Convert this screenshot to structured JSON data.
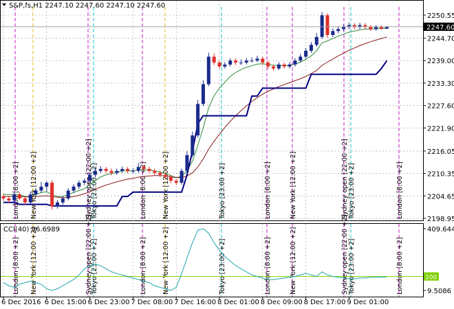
{
  "chart_data": [
    {
      "type": "candlestick",
      "title": "S&P,fs,H1  2247.10 2247.60 2247.10 2247.60",
      "categories": [
        "6 Dec 2016",
        null,
        null,
        null,
        null,
        null,
        null,
        null,
        "6 Dec 15:00",
        null,
        null,
        null,
        null,
        null,
        null,
        null,
        "6 Dec 23:00",
        null,
        null,
        null,
        null,
        null,
        null,
        null,
        "7 Dec 08:00",
        null,
        null,
        null,
        null,
        null,
        null,
        null,
        "7 Dec 16:00",
        null,
        null,
        null,
        null,
        null,
        null,
        null,
        "8 Dec 01:00",
        null,
        null,
        null,
        null,
        null,
        null,
        null,
        "8 Dec 09:00",
        null,
        null,
        null,
        null,
        null,
        null,
        null,
        "8 Dec 17:00",
        null,
        null,
        null,
        null,
        null,
        null,
        null,
        "9 Dec 01:00",
        null,
        null,
        null,
        null,
        null,
        null,
        null
      ],
      "ohlc": [
        [
          2204.5,
          2205.3,
          2203.4,
          2204
        ],
        [
          2204,
          2204.6,
          2202.8,
          2203.5
        ],
        [
          2203.5,
          2205.6,
          2203,
          2205
        ],
        [
          2205,
          2205.6,
          2203.6,
          2204
        ],
        [
          2204,
          2204.5,
          2202.4,
          2203
        ],
        [
          2203,
          2205.6,
          2202.6,
          2205
        ],
        [
          2205,
          2206.6,
          2204.5,
          2206
        ],
        [
          2206,
          2208.2,
          2205.5,
          2207
        ],
        [
          2207,
          2208.4,
          2205.8,
          2208
        ],
        [
          2208,
          2208.6,
          2201.2,
          2202
        ],
        [
          2202,
          2203.6,
          2201.4,
          2203
        ],
        [
          2203,
          2204.6,
          2202.4,
          2204
        ],
        [
          2204,
          2206.6,
          2203.5,
          2206
        ],
        [
          2206,
          2207.6,
          2205.4,
          2207
        ],
        [
          2207,
          2208.6,
          2206.4,
          2208
        ],
        [
          2208,
          2209.1,
          2207.4,
          2208.5
        ],
        [
          2208.5,
          2210.6,
          2208,
          2210
        ],
        [
          2210,
          2211.7,
          2209.4,
          2211
        ],
        [
          2211,
          2212.2,
          2210.5,
          2211.5
        ],
        [
          2211.5,
          2212,
          2210.4,
          2211
        ],
        [
          2211,
          2211.6,
          2209.9,
          2210.5
        ],
        [
          2210.5,
          2211.6,
          2210,
          2211
        ],
        [
          2211,
          2212.1,
          2210.5,
          2211.5
        ],
        [
          2211.5,
          2212,
          2210.4,
          2211
        ],
        [
          2211,
          2211.7,
          2210.4,
          2211
        ],
        [
          2211,
          2213,
          2210.5,
          2212
        ],
        [
          2212,
          2212.5,
          2211,
          2211.5
        ],
        [
          2211.5,
          2212,
          2210.5,
          2211
        ],
        [
          2211,
          2211.6,
          2209.9,
          2210.5
        ],
        [
          2210.5,
          2211,
          2209.4,
          2210
        ],
        [
          2210,
          2210.6,
          2208.9,
          2209.5
        ],
        [
          2209.5,
          2210,
          2207.9,
          2208.5
        ],
        [
          2208.5,
          2209,
          2207.4,
          2208
        ],
        [
          2208,
          2211.6,
          2207.5,
          2211
        ],
        [
          2211,
          2216,
          2210.5,
          2215
        ],
        [
          2215,
          2221,
          2214.5,
          2220
        ],
        [
          2220,
          2229,
          2219.5,
          2228
        ],
        [
          2228,
          2234,
          2227.5,
          2233
        ],
        [
          2233,
          2241,
          2232.5,
          2240
        ],
        [
          2240,
          2240.8,
          2237.9,
          2238.5
        ],
        [
          2238.5,
          2239,
          2236.9,
          2237.5
        ],
        [
          2237.5,
          2238.6,
          2237,
          2238
        ],
        [
          2238,
          2239.6,
          2237.5,
          2239
        ],
        [
          2239,
          2239.6,
          2237.9,
          2238.5
        ],
        [
          2238.5,
          2239.3,
          2237.9,
          2238.5
        ],
        [
          2238.5,
          2239.6,
          2238,
          2239
        ],
        [
          2239,
          2239.8,
          2238.5,
          2239
        ],
        [
          2239,
          2240.2,
          2238.6,
          2239.5
        ],
        [
          2239.5,
          2240,
          2237.9,
          2238.5
        ],
        [
          2238.5,
          2239,
          2236.9,
          2237.5
        ],
        [
          2237.5,
          2238,
          2236.4,
          2237
        ],
        [
          2237,
          2238.6,
          2236.6,
          2238
        ],
        [
          2238,
          2238.5,
          2236.9,
          2237.5
        ],
        [
          2237.5,
          2238.6,
          2237,
          2238
        ],
        [
          2238,
          2239.6,
          2237.5,
          2239
        ],
        [
          2239,
          2240.7,
          2238.5,
          2240
        ],
        [
          2240,
          2242.2,
          2239.5,
          2241.5
        ],
        [
          2241.5,
          2243.7,
          2241,
          2243
        ],
        [
          2243,
          2246,
          2242.5,
          2245
        ],
        [
          2245,
          2251.3,
          2244.5,
          2250.5
        ],
        [
          2250.5,
          2251,
          2244.8,
          2245.5
        ],
        [
          2245.5,
          2247.2,
          2245,
          2246.5
        ],
        [
          2246.5,
          2247.7,
          2246,
          2247
        ],
        [
          2247,
          2248.2,
          2246.5,
          2247.5
        ],
        [
          2247.5,
          2248.6,
          2247,
          2248
        ],
        [
          2248,
          2248.5,
          2246.9,
          2247.5
        ],
        [
          2247.5,
          2248.6,
          2247,
          2248
        ],
        [
          2248,
          2248.5,
          2246.9,
          2247.5
        ],
        [
          2247.5,
          2248,
          2246.5,
          2247
        ],
        [
          2247,
          2248,
          2246.6,
          2247.5
        ],
        [
          2247.5,
          2247.9,
          2246.9,
          2247.1
        ],
        [
          2247.1,
          2247.6,
          2247.1,
          2247.6
        ]
      ],
      "up_color": "#1a2a8c",
      "down_color": "#e0302a",
      "series": [
        {
          "color": "#2e8b3a",
          "values": [
            2205,
            2205,
            2205,
            2205,
            2204.5,
            2204.5,
            2205,
            2205.5,
            2205.7,
            2205,
            2204.5,
            2204.5,
            2205,
            2205.5,
            2206,
            2206.5,
            2207.5,
            2208.5,
            2209.5,
            2210,
            2210.3,
            2210.6,
            2211,
            2211,
            2211,
            2211.3,
            2211.3,
            2211.2,
            2211,
            2210.7,
            2210.3,
            2209.8,
            2209.3,
            2209.6,
            2211,
            2213.5,
            2217.5,
            2222,
            2227,
            2230,
            2232,
            2233.5,
            2235,
            2236,
            2236.7,
            2237.3,
            2237.7,
            2238.1,
            2238.2,
            2238,
            2237.8,
            2237.8,
            2237.7,
            2237.8,
            2238.1,
            2238.6,
            2239.3,
            2240.2,
            2241.5,
            2243.5,
            2244,
            2244.6,
            2245.2,
            2245.7,
            2246.2,
            2246.5,
            2246.8,
            2247,
            2247,
            2247.1,
            2247.1,
            2247.2
          ]
        },
        {
          "color": "#8b1a1a",
          "values": [
            2204.5,
            2204.5,
            2204.5,
            2204.5,
            2204.4,
            2204.4,
            2204.5,
            2204.6,
            2204.7,
            2204.5,
            2204.3,
            2204.2,
            2204.3,
            2204.5,
            2204.8,
            2205.2,
            2205.7,
            2206.3,
            2206.9,
            2207.4,
            2207.8,
            2208.2,
            2208.6,
            2208.9,
            2209.1,
            2209.4,
            2209.6,
            2209.7,
            2209.8,
            2209.8,
            2209.7,
            2209.5,
            2209.3,
            2209.3,
            2209.7,
            2210.5,
            2212,
            2214,
            2216.5,
            2218.5,
            2220.3,
            2222,
            2223.6,
            2225,
            2226.3,
            2227.5,
            2228.6,
            2229.6,
            2230.5,
            2231.2,
            2231.8,
            2232.4,
            2232.9,
            2233.4,
            2233.9,
            2234.4,
            2235,
            2235.7,
            2236.5,
            2237.8,
            2238.6,
            2239.4,
            2240.2,
            2240.9,
            2241.6,
            2242.2,
            2242.8,
            2243.3,
            2243.8,
            2244.2,
            2244.6,
            2245
          ]
        },
        {
          "color": "#000080",
          "values": [
            2203,
            2203,
            2203,
            2202.5,
            2202.5,
            2202.5,
            2202.5,
            2202.5,
            2202.5,
            2202.1,
            2202.1,
            2202.1,
            2202.1,
            2202.1,
            2202.1,
            2202.1,
            2202.1,
            2202.1,
            2202.1,
            2202.1,
            2202.1,
            2202.1,
            2204.5,
            2204.5,
            2205.6,
            2205.6,
            2205.6,
            2205.6,
            2205.6,
            2205.6,
            2205.6,
            2205.6,
            2205.6,
            2205.6,
            2210,
            2216,
            2223,
            2225,
            2225,
            2225,
            2225,
            2225,
            2225,
            2225,
            2225,
            2225,
            2230,
            2230,
            2232,
            2232,
            2232,
            2232,
            2232,
            2232,
            2232,
            2232,
            2232,
            2235.5,
            2235.5,
            2235.5,
            2235.5,
            2235.5,
            2235.5,
            2235.5,
            2235.5,
            2235.5,
            2235.5,
            2235.5,
            2235.5,
            2235.5,
            2237,
            2239
          ]
        }
      ],
      "ylim": [
        2198.25,
        2252.64
      ],
      "yticks": [
        2250.55,
        {
          "value": 2244.7,
          "label": "2244.70"
        },
        {
          "value": 2239,
          "label": "2239.00"
        },
        {
          "value": 2233.3,
          "label": "2233.30"
        },
        {
          "value": 2227.6,
          "label": "2227.60"
        },
        {
          "value": 2221.9,
          "label": "2221.90"
        },
        2216.05,
        2210.35,
        2204.65,
        2198.95
      ],
      "last_price": {
        "value": 2247.6,
        "label": "2247.60"
      },
      "grid": true,
      "annotations": [
        "London [8:00 +2]",
        "New York [12:00 +2]",
        "Sydney open [22:00 +2]",
        "Tokyo [23:00 +2]",
        "London [8:00 +2]",
        "New York [12:00 +2]",
        "Tokyo [23:00 +2]",
        "London [8:00 +2]",
        "New York [12:00 +2]",
        "Sydney open [22:00 +2]",
        "Tokyo [23:00 +2]",
        "London [8:00 +2]"
      ]
    },
    {
      "type": "line",
      "title": "CCI(40) 96.6989",
      "series": [
        {
          "color": "#20a8b0",
          "values": [
            60,
            40,
            30,
            50,
            60,
            70,
            60,
            50,
            20,
            10,
            20,
            40,
            60,
            80,
            110,
            150,
            170,
            180,
            170,
            150,
            130,
            120,
            110,
            100,
            90,
            80,
            70,
            60,
            40,
            30,
            20,
            10,
            30,
            120,
            220,
            320,
            400,
            409.6,
            380,
            320,
            270,
            230,
            200,
            170,
            150,
            130,
            110,
            100,
            90,
            80,
            80,
            85,
            90,
            95,
            100,
            110,
            120,
            110,
            100,
            130,
            110,
            100,
            95,
            90,
            85,
            85,
            90,
            90,
            95,
            95,
            96,
            96.6989
          ]
        }
      ],
      "ylim": [
        -30.5,
        440.8
      ],
      "yticks": [
        409.6444,
        9.5086
      ],
      "levels": [
        100
      ],
      "level_color": "#7fd000"
    }
  ]
}
